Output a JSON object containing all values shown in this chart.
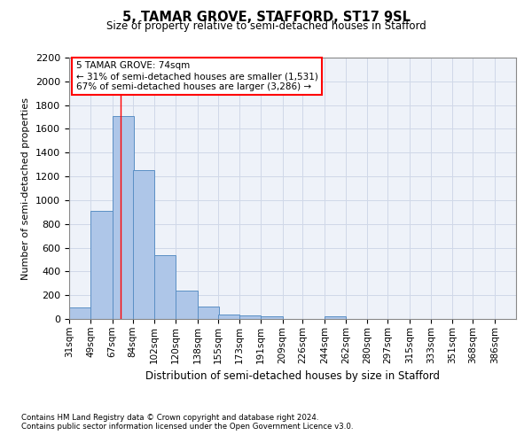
{
  "title": "5, TAMAR GROVE, STAFFORD, ST17 9SL",
  "subtitle": "Size of property relative to semi-detached houses in Stafford",
  "xlabel": "Distribution of semi-detached houses by size in Stafford",
  "ylabel": "Number of semi-detached properties",
  "footnote1": "Contains HM Land Registry data © Crown copyright and database right 2024.",
  "footnote2": "Contains public sector information licensed under the Open Government Licence v3.0.",
  "annotation_line1": "5 TAMAR GROVE: 74sqm",
  "annotation_line2": "← 31% of semi-detached houses are smaller (1,531)",
  "annotation_line3": "67% of semi-detached houses are larger (3,286) →",
  "property_size": 74,
  "bin_labels": [
    "31sqm",
    "49sqm",
    "67sqm",
    "84sqm",
    "102sqm",
    "120sqm",
    "138sqm",
    "155sqm",
    "173sqm",
    "191sqm",
    "209sqm",
    "226sqm",
    "244sqm",
    "262sqm",
    "280sqm",
    "297sqm",
    "315sqm",
    "333sqm",
    "351sqm",
    "368sqm",
    "386sqm"
  ],
  "bin_edges": [
    31,
    49,
    67,
    84,
    102,
    120,
    138,
    155,
    173,
    191,
    209,
    226,
    244,
    262,
    280,
    297,
    315,
    333,
    351,
    368,
    386
  ],
  "bar_values": [
    100,
    910,
    1710,
    1255,
    540,
    237,
    107,
    40,
    27,
    20,
    0,
    0,
    25,
    0,
    0,
    0,
    0,
    0,
    0,
    0
  ],
  "bar_color": "#aec6e8",
  "bar_edge_color": "#5a8fc4",
  "grid_color": "#d0d8e8",
  "background_color": "#eef2f9",
  "red_line_x": 74,
  "ylim": [
    0,
    2200
  ],
  "yticks": [
    0,
    200,
    400,
    600,
    800,
    1000,
    1200,
    1400,
    1600,
    1800,
    2000,
    2200
  ]
}
